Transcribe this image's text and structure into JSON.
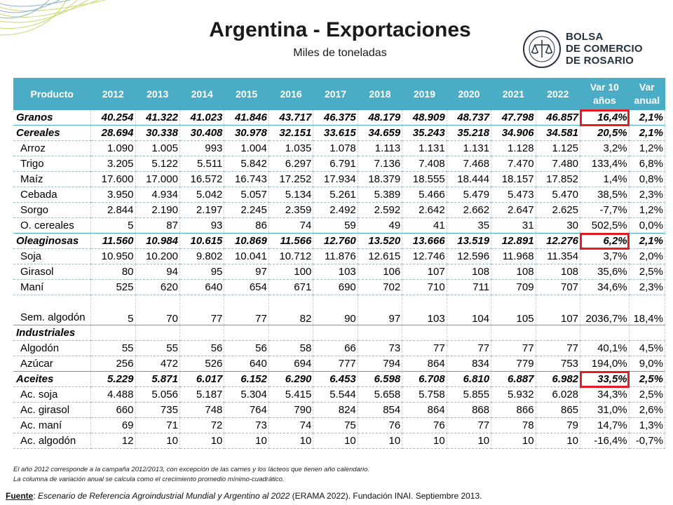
{
  "title": "Argentina - Exportaciones",
  "subtitle": "Miles de toneladas",
  "logo": {
    "lines": [
      "BOLSA",
      "DE COMERCIO",
      "DE ROSARIO"
    ],
    "seal_text": "BOLSA DE COMERCIO DE ROSARIO"
  },
  "headers": [
    "Producto",
    "2012",
    "2013",
    "2014",
    "2015",
    "2016",
    "2017",
    "2018",
    "2019",
    "2020",
    "2021",
    "2022",
    "Var 10 años",
    "Var anual"
  ],
  "rows": [
    {
      "name": "Granos",
      "style": "bold",
      "v": [
        "40.254",
        "41.322",
        "41.023",
        "41.846",
        "43.717",
        "46.375",
        "48.179",
        "48.909",
        "48.737",
        "47.798",
        "46.857",
        "16,4%",
        "2,1%"
      ]
    },
    {
      "name": "Cereales",
      "style": "bold group",
      "v": [
        "28.694",
        "30.338",
        "30.408",
        "30.978",
        "32.151",
        "33.615",
        "34.659",
        "35.243",
        "35.218",
        "34.906",
        "34.581",
        "20,5%",
        "2,1%"
      ]
    },
    {
      "name": "Arroz",
      "style": "indent",
      "v": [
        "1.090",
        "1.005",
        "993",
        "1.004",
        "1.035",
        "1.078",
        "1.113",
        "1.131",
        "1.131",
        "1.128",
        "1.125",
        "3,2%",
        "1,2%"
      ]
    },
    {
      "name": "Trigo",
      "style": "indent",
      "v": [
        "3.205",
        "5.122",
        "5.511",
        "5.842",
        "6.297",
        "6.791",
        "7.136",
        "7.408",
        "7.468",
        "7.470",
        "7.480",
        "133,4%",
        "6,8%"
      ]
    },
    {
      "name": "Maíz",
      "style": "indent",
      "v": [
        "17.600",
        "17.000",
        "16.572",
        "16.743",
        "17.252",
        "17.934",
        "18.379",
        "18.555",
        "18.444",
        "18.157",
        "17.852",
        "1,4%",
        "0,8%"
      ]
    },
    {
      "name": "Cebada",
      "style": "indent",
      "v": [
        "3.950",
        "4.934",
        "5.042",
        "5.057",
        "5.134",
        "5.261",
        "5.389",
        "5.466",
        "5.479",
        "5.473",
        "5.470",
        "38,5%",
        "2,3%"
      ]
    },
    {
      "name": "Sorgo",
      "style": "indent",
      "v": [
        "2.844",
        "2.190",
        "2.197",
        "2.245",
        "2.359",
        "2.492",
        "2.592",
        "2.642",
        "2.662",
        "2.647",
        "2.625",
        "-7,7%",
        "1,2%"
      ]
    },
    {
      "name": "O. cereales",
      "style": "indent",
      "v": [
        "5",
        "87",
        "93",
        "86",
        "74",
        "59",
        "49",
        "41",
        "35",
        "31",
        "30",
        "502,5%",
        "0,0%"
      ]
    },
    {
      "name": "Oleaginosas",
      "style": "bold group",
      "v": [
        "11.560",
        "10.984",
        "10.615",
        "10.869",
        "11.566",
        "12.760",
        "13.520",
        "13.666",
        "13.519",
        "12.891",
        "12.276",
        "6,2%",
        "2,1%"
      ]
    },
    {
      "name": "Soja",
      "style": "indent",
      "v": [
        "10.950",
        "10.200",
        "9.802",
        "10.041",
        "10.712",
        "11.876",
        "12.615",
        "12.746",
        "12.596",
        "11.968",
        "11.354",
        "3,7%",
        "2,0%"
      ]
    },
    {
      "name": "Girasol",
      "style": "indent",
      "v": [
        "80",
        "94",
        "95",
        "97",
        "100",
        "103",
        "106",
        "107",
        "108",
        "108",
        "108",
        "35,6%",
        "2,5%"
      ]
    },
    {
      "name": "Maní",
      "style": "indent",
      "v": [
        "525",
        "620",
        "640",
        "654",
        "671",
        "690",
        "702",
        "710",
        "711",
        "709",
        "707",
        "34,6%",
        "2,3%"
      ]
    },
    {
      "name": "Sem. algodón",
      "style": "indent wrap",
      "v": [
        "5",
        "70",
        "77",
        "77",
        "82",
        "90",
        "97",
        "103",
        "104",
        "105",
        "107",
        "2036,7%",
        "18,4%"
      ]
    },
    {
      "name": "Industriales",
      "style": "bold group",
      "v": [
        "",
        "",
        "",
        "",
        "",
        "",
        "",
        "",
        "",
        "",
        "",
        "",
        ""
      ]
    },
    {
      "name": "Algodón",
      "style": "indent",
      "v": [
        "55",
        "55",
        "56",
        "56",
        "58",
        "66",
        "73",
        "77",
        "77",
        "77",
        "77",
        "40,1%",
        "4,5%"
      ]
    },
    {
      "name": "Azúcar",
      "style": "indent",
      "v": [
        "256",
        "472",
        "526",
        "640",
        "694",
        "777",
        "794",
        "864",
        "834",
        "779",
        "753",
        "194,0%",
        "9,0%"
      ]
    },
    {
      "name": "Aceites",
      "style": "bold group",
      "v": [
        "5.229",
        "5.871",
        "6.017",
        "6.152",
        "6.290",
        "6.453",
        "6.598",
        "6.708",
        "6.810",
        "6.887",
        "6.982",
        "33,5%",
        "2,5%"
      ]
    },
    {
      "name": "Ac. soja",
      "style": "indent",
      "v": [
        "4.488",
        "5.056",
        "5.187",
        "5.304",
        "5.415",
        "5.544",
        "5.658",
        "5.758",
        "5.855",
        "5.932",
        "6.028",
        "34,3%",
        "2,5%"
      ]
    },
    {
      "name": "Ac. girasol",
      "style": "indent",
      "v": [
        "660",
        "735",
        "748",
        "764",
        "790",
        "824",
        "854",
        "864",
        "868",
        "866",
        "865",
        "31,0%",
        "2,6%"
      ]
    },
    {
      "name": "Ac. maní",
      "style": "indent",
      "v": [
        "69",
        "71",
        "72",
        "73",
        "74",
        "75",
        "76",
        "76",
        "77",
        "78",
        "79",
        "14,7%",
        "1,3%"
      ]
    },
    {
      "name": "Ac. algodón",
      "style": "indent",
      "v": [
        "12",
        "10",
        "10",
        "10",
        "10",
        "10",
        "10",
        "10",
        "10",
        "10",
        "10",
        "-16,4%",
        "-0,7%"
      ]
    }
  ],
  "highlighted_cells": [
    "Granos: Var 10 años",
    "Oleaginosas: Var 10 años",
    "Aceites: Var 10 años"
  ],
  "notes": [
    "El año 2012 corresponde a la campaña 2012/2013, con excepción de las carnes y los lácteos que tienen año calendario.",
    "La columna de variación anual se calcula como el crecimiento promedio mínimo-cuadrático."
  ],
  "source": {
    "label": "Fuente",
    "title": "Escenario de Referencia Agroindustrial Mundial y Argentino al 2022",
    "rest": " (ERAMA 2022). Fundación INAI. Septiembre 2013."
  },
  "colors": {
    "header_bg": "#4bacc6",
    "highlight": "#e31b23",
    "corner": "#c9d86a"
  }
}
